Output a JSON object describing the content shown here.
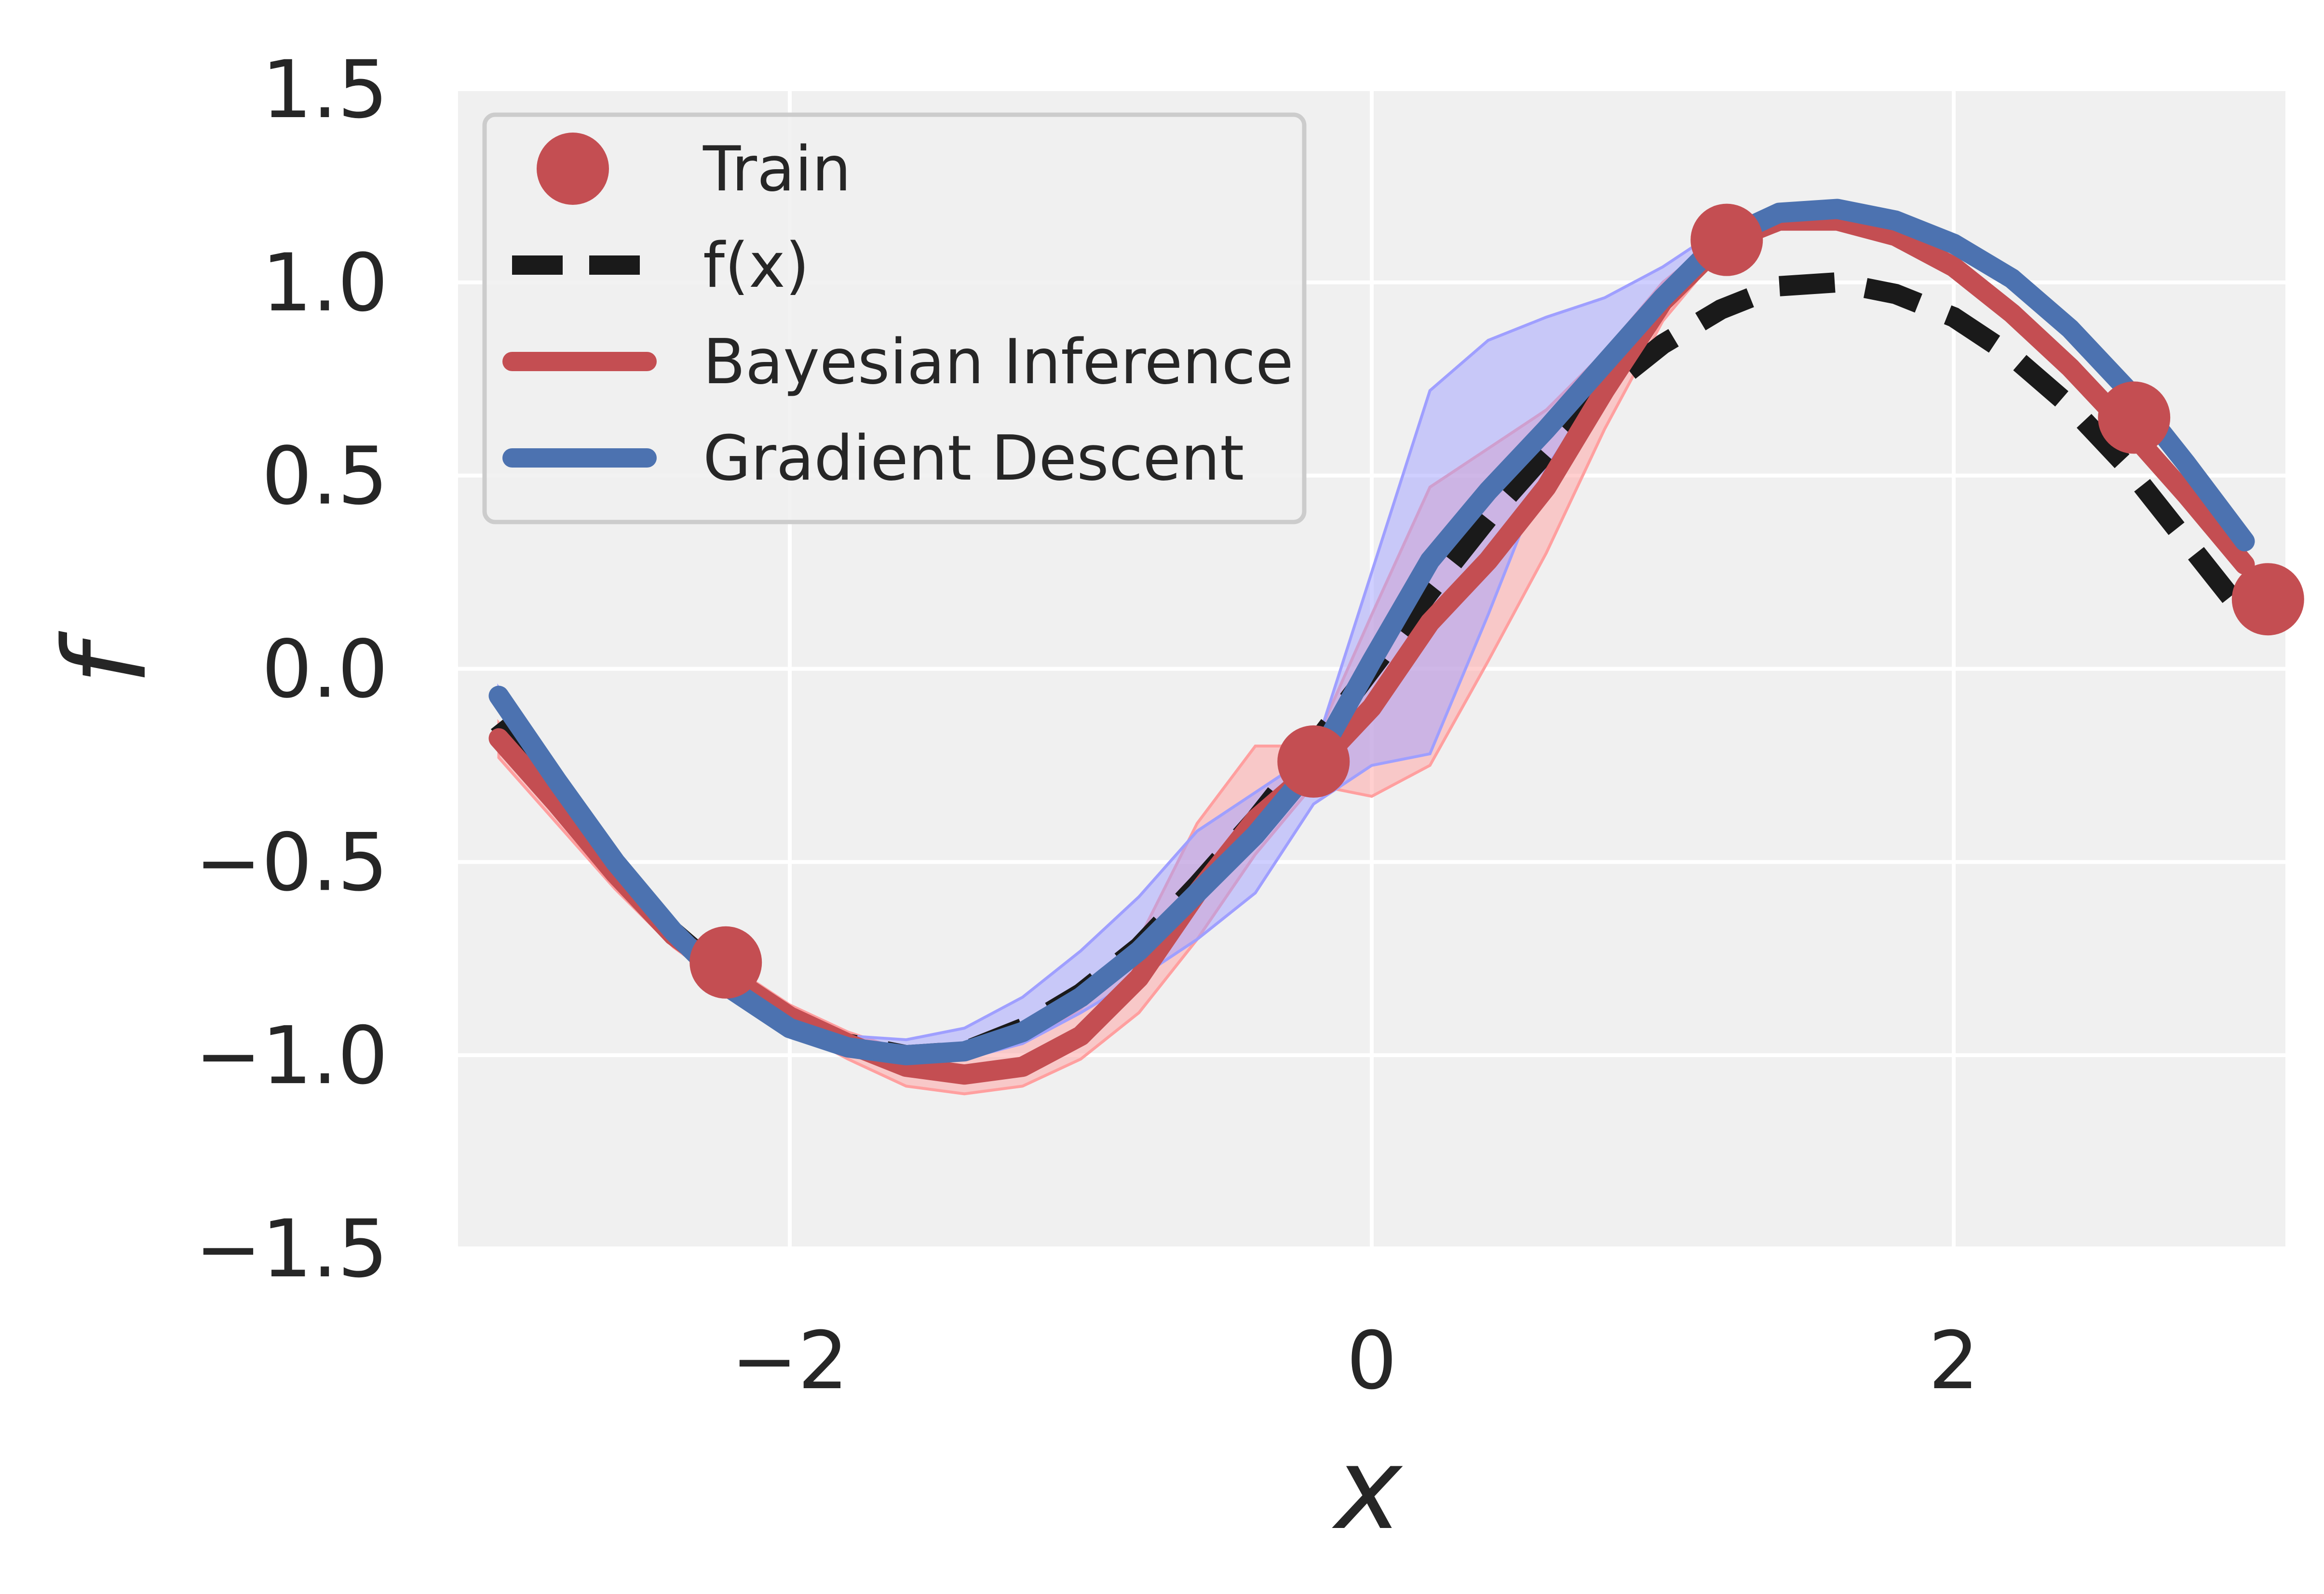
{
  "chart_data": {
    "type": "line",
    "xlabel": "x",
    "ylabel": "f",
    "xlim": [
      -3.14,
      3.14
    ],
    "ylim": [
      -1.5,
      1.5
    ],
    "xticks": [
      -2,
      0,
      2
    ],
    "xtick_labels": [
      "−2",
      "0",
      "2"
    ],
    "yticks": [
      -1.5,
      -1.0,
      -0.5,
      0.0,
      0.5,
      1.0,
      1.5
    ],
    "ytick_labels": [
      "−1.5",
      "−1.0",
      "−0.5",
      "0.0",
      "0.5",
      "1.0",
      "1.5"
    ],
    "grid": true,
    "legend_position": "top-left",
    "legend": [
      "Train",
      "f(x)",
      "Bayesian Inference",
      "Gradient Descent"
    ],
    "colors": {
      "background": "#f0f0f0",
      "grid": "#ffffff",
      "train": "#c44e52",
      "fx": "#1a1a1a",
      "bayes": "#c44e52",
      "bayes_band": "#ff9f9f",
      "gd": "#4c72b0",
      "gd_band": "#9f9fff"
    },
    "train": {
      "x": [
        -2.22,
        -0.2,
        1.22,
        2.62,
        3.08
      ],
      "y": [
        -0.76,
        -0.24,
        1.11,
        0.65,
        0.18
      ]
    },
    "fx": {
      "x": [
        -3.0,
        -2.8,
        -2.6,
        -2.4,
        -2.2,
        -2.0,
        -1.8,
        -1.6,
        -1.4,
        -1.2,
        -1.0,
        -0.8,
        -0.6,
        -0.4,
        -0.2,
        0.0,
        0.2,
        0.4,
        0.6,
        0.8,
        1.0,
        1.2,
        1.4,
        1.6,
        1.8,
        2.0,
        2.2,
        2.4,
        2.6,
        2.8,
        3.0
      ],
      "y": [
        -0.14,
        -0.33,
        -0.52,
        -0.68,
        -0.81,
        -0.91,
        -0.97,
        -1.0,
        -0.99,
        -0.93,
        -0.84,
        -0.72,
        -0.56,
        -0.39,
        -0.2,
        0.0,
        0.2,
        0.39,
        0.56,
        0.72,
        0.84,
        0.93,
        0.99,
        1.0,
        0.97,
        0.91,
        0.81,
        0.68,
        0.52,
        0.33,
        0.14
      ]
    },
    "bayes": {
      "x": [
        -3.0,
        -2.8,
        -2.6,
        -2.4,
        -2.2,
        -2.0,
        -1.8,
        -1.6,
        -1.4,
        -1.2,
        -1.0,
        -0.8,
        -0.6,
        -0.4,
        -0.2,
        0.0,
        0.2,
        0.4,
        0.6,
        0.8,
        1.0,
        1.2,
        1.4,
        1.6,
        1.8,
        2.0,
        2.2,
        2.4,
        2.6,
        2.8,
        3.0
      ],
      "y": [
        -0.18,
        -0.35,
        -0.53,
        -0.69,
        -0.8,
        -0.9,
        -0.97,
        -1.03,
        -1.05,
        -1.03,
        -0.95,
        -0.8,
        -0.58,
        -0.39,
        -0.26,
        -0.1,
        0.12,
        0.28,
        0.47,
        0.72,
        0.95,
        1.1,
        1.16,
        1.16,
        1.12,
        1.04,
        0.92,
        0.78,
        0.62,
        0.45,
        0.27
      ],
      "lower": [
        -0.23,
        -0.4,
        -0.57,
        -0.72,
        -0.83,
        -0.93,
        -1.01,
        -1.08,
        -1.1,
        -1.08,
        -1.01,
        -0.89,
        -0.7,
        -0.48,
        -0.3,
        -0.33,
        -0.25,
        0.02,
        0.3,
        0.62,
        0.9,
        1.08,
        1.14,
        1.14,
        1.1,
        1.02,
        0.9,
        0.76,
        0.6,
        0.43,
        0.25
      ],
      "upper": [
        -0.14,
        -0.31,
        -0.49,
        -0.66,
        -0.77,
        -0.87,
        -0.94,
        -0.99,
        -1.0,
        -0.97,
        -0.88,
        -0.7,
        -0.4,
        -0.2,
        -0.2,
        0.14,
        0.47,
        0.57,
        0.67,
        0.82,
        1.0,
        1.12,
        1.18,
        1.18,
        1.14,
        1.06,
        0.94,
        0.8,
        0.64,
        0.47,
        0.29
      ]
    },
    "gd": {
      "x": [
        -3.0,
        -2.8,
        -2.6,
        -2.4,
        -2.2,
        -2.0,
        -1.8,
        -1.6,
        -1.4,
        -1.2,
        -1.0,
        -0.8,
        -0.6,
        -0.4,
        -0.2,
        0.0,
        0.2,
        0.4,
        0.6,
        0.8,
        1.0,
        1.2,
        1.4,
        1.6,
        1.8,
        2.0,
        2.2,
        2.4,
        2.6,
        2.8,
        3.0
      ],
      "y": [
        -0.07,
        -0.29,
        -0.5,
        -0.68,
        -0.83,
        -0.93,
        -0.98,
        -1.0,
        -0.99,
        -0.94,
        -0.85,
        -0.73,
        -0.58,
        -0.43,
        -0.25,
        0.02,
        0.28,
        0.46,
        0.62,
        0.79,
        0.96,
        1.11,
        1.18,
        1.19,
        1.16,
        1.1,
        1.01,
        0.88,
        0.72,
        0.53,
        0.33
      ],
      "lower": [
        -0.09,
        -0.31,
        -0.52,
        -0.7,
        -0.85,
        -0.95,
        -1.0,
        -1.02,
        -1.01,
        -0.97,
        -0.89,
        -0.8,
        -0.7,
        -0.58,
        -0.35,
        -0.25,
        -0.22,
        0.14,
        0.52,
        0.74,
        0.94,
        1.1,
        1.17,
        1.18,
        1.15,
        1.08,
        0.99,
        0.86,
        0.7,
        0.51,
        0.31
      ],
      "upper": [
        -0.05,
        -0.27,
        -0.48,
        -0.66,
        -0.81,
        -0.91,
        -0.95,
        -0.96,
        -0.93,
        -0.85,
        -0.73,
        -0.59,
        -0.42,
        -0.32,
        -0.22,
        0.25,
        0.72,
        0.85,
        0.91,
        0.96,
        1.04,
        1.14,
        1.2,
        1.21,
        1.18,
        1.12,
        1.03,
        0.9,
        0.74,
        0.55,
        0.35
      ]
    }
  }
}
